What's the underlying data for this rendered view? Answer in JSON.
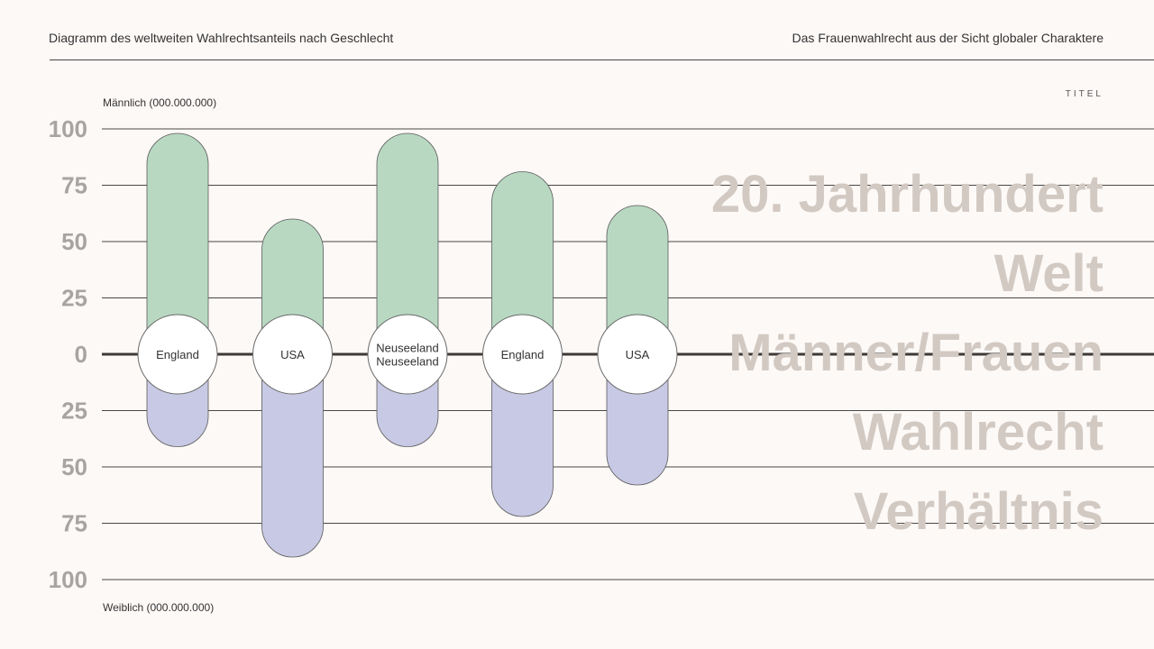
{
  "header": {
    "left_text": "Diagramm des weltweiten Wahlrechtsanteils nach Geschlecht",
    "right_text": "Das Frauenwahlrecht aus der Sicht globaler Charaktere"
  },
  "kicker": "TITEL",
  "title_lines": [
    "20. Jahrhundert",
    "Welt",
    "Männer/Frauen",
    "Wahlrecht",
    "Verhältnis"
  ],
  "colors": {
    "background": "#fdf9f7",
    "male": "#b8d8c2",
    "female": "#c8c9e4",
    "title": "#d2c9c2",
    "tick": "#a8a4a2"
  },
  "chart_data": {
    "type": "bar",
    "top_axis_label": "Männlich (000.000.000)",
    "bottom_axis_label": "Weiblich (000.000.000)",
    "y_ticks_top": [
      "100",
      "75",
      "50",
      "25"
    ],
    "y_tick_zero": "0",
    "y_ticks_bottom": [
      "25",
      "50",
      "75",
      "100"
    ],
    "ylim": [
      -100,
      100
    ],
    "grid": true,
    "categories": [
      [
        "England"
      ],
      [
        "USA"
      ],
      [
        "Neuseeland",
        "Neuseeland"
      ],
      [
        "England"
      ],
      [
        "USA"
      ]
    ],
    "series": [
      {
        "color": "#b8d8c2",
        "values": [
          98,
          60,
          98,
          81,
          66
        ]
      },
      {
        "color": "#c8c9e4",
        "values": [
          -41,
          -90,
          -41,
          -72,
          -58
        ]
      }
    ]
  }
}
